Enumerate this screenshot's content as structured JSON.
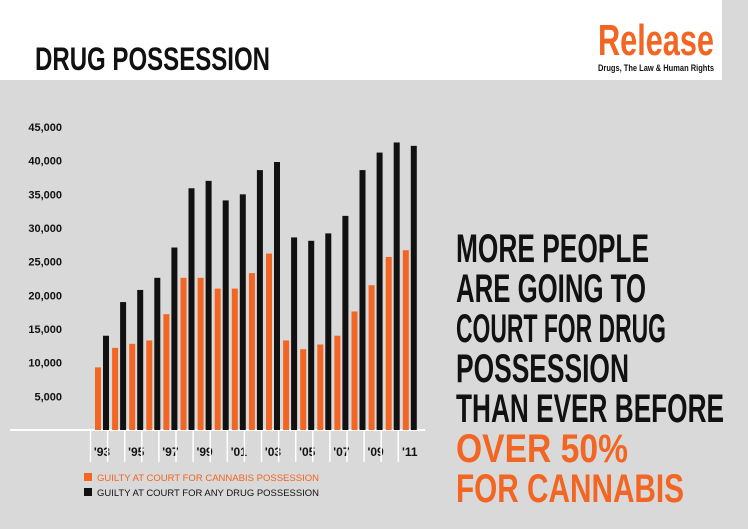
{
  "chart_data": {
    "type": "bar",
    "title": "DRUG POSSESSION",
    "logo": "Release",
    "logo_tagline": "Drugs, The Law & Human Rights",
    "categories": [
      "'93",
      null,
      "'95",
      null,
      "'97",
      null,
      "'99",
      null,
      "'01",
      null,
      "'03",
      null,
      "'05",
      null,
      "'07",
      null,
      "'09",
      null,
      "'11"
    ],
    "series": [
      {
        "name": "GUILTY AT COURT FOR CANNABIS POSSESSION",
        "color": "#f26522",
        "values": [
          9300,
          12200,
          12800,
          13300,
          17200,
          22600,
          22600,
          21000,
          21000,
          23300,
          26200,
          13300,
          12000,
          12700,
          14000,
          17600,
          21500,
          25700,
          26700
        ]
      },
      {
        "name": "GUILTY AT COURT FOR ANY DRUG POSSESSION",
        "color": "#111111",
        "values": [
          14000,
          19000,
          20800,
          22600,
          27100,
          35900,
          37000,
          34100,
          35000,
          38600,
          39800,
          28600,
          28100,
          29200,
          31800,
          38600,
          41200,
          42700,
          42200
        ]
      }
    ],
    "ylim": [
      0,
      45000
    ],
    "yticks": [
      {
        "value": 5000,
        "label": "5,000"
      },
      {
        "value": 10000,
        "label": "10,000"
      },
      {
        "value": 15000,
        "label": "15,000"
      },
      {
        "value": 20000,
        "label": "20,000"
      },
      {
        "value": 25000,
        "label": "25,000"
      },
      {
        "value": 30000,
        "label": "30,000"
      },
      {
        "value": 35000,
        "label": "35,000"
      },
      {
        "value": 40000,
        "label": "40,000"
      },
      {
        "value": 45000,
        "label": "45,000"
      }
    ],
    "annotations": [
      {
        "text": "MORE PEOPLE",
        "color": "#111111"
      },
      {
        "text": "ARE GOING TO",
        "color": "#111111"
      },
      {
        "text": "COURT FOR DRUG",
        "color": "#111111"
      },
      {
        "text": "POSSESSION",
        "color": "#111111"
      },
      {
        "text": "THAN EVER BEFORE",
        "color": "#111111"
      },
      {
        "text": "OVER 50%",
        "color": "#f26522"
      },
      {
        "text": "FOR CANNABIS",
        "color": "#f26522"
      }
    ]
  }
}
